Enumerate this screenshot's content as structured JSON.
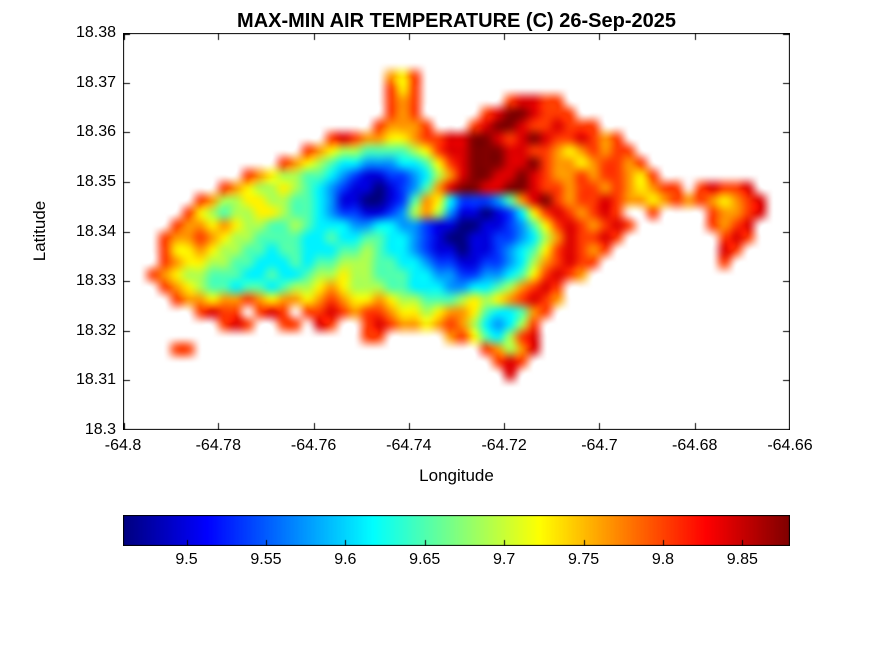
{
  "chart_data": {
    "type": "heatmap",
    "title": "MAX-MIN AIR TEMPERATURE (C) 26-Sep-2025",
    "xlabel": "Longitude",
    "ylabel": "Latitude",
    "xlim": [
      -64.8,
      -64.66
    ],
    "ylim": [
      18.3,
      18.38
    ],
    "grid_lines": false,
    "x_ticks": [
      {
        "label": "-64.8",
        "value": -64.8
      },
      {
        "label": "-64.78",
        "value": -64.78
      },
      {
        "label": "-64.76",
        "value": -64.76
      },
      {
        "label": "-64.74",
        "value": -64.74
      },
      {
        "label": "-64.72",
        "value": -64.72
      },
      {
        "label": "-64.7",
        "value": -64.7
      },
      {
        "label": "-64.68",
        "value": -64.68
      },
      {
        "label": "-64.66",
        "value": -64.66
      }
    ],
    "y_ticks": [
      {
        "label": "18.3",
        "value": 18.3
      },
      {
        "label": "18.31",
        "value": 18.31
      },
      {
        "label": "18.32",
        "value": 18.32
      },
      {
        "label": "18.33",
        "value": 18.33
      },
      {
        "label": "18.34",
        "value": 18.34
      },
      {
        "label": "18.35",
        "value": 18.35
      },
      {
        "label": "18.36",
        "value": 18.36
      },
      {
        "label": "18.37",
        "value": 18.37
      },
      {
        "label": "18.38",
        "value": 18.38
      }
    ],
    "colorbar": {
      "orientation": "horizontal",
      "colormap": "jet",
      "min": 9.46,
      "max": 9.88,
      "ticks": [
        {
          "label": "9.5",
          "value": 9.5
        },
        {
          "label": "9.55",
          "value": 9.55
        },
        {
          "label": "9.6",
          "value": 9.6
        },
        {
          "label": "9.65",
          "value": 9.65
        },
        {
          "label": "9.7",
          "value": 9.7
        },
        {
          "label": "9.75",
          "value": 9.75
        },
        {
          "label": "9.8",
          "value": 9.8
        },
        {
          "label": "9.85",
          "value": 9.85
        }
      ]
    },
    "grid": {
      "encoding": "Each row string is one latitude band (top row = lat 18.38). Each char is one cell of 0.0025 deg. '.' = no data (sea). Chars '0'-'9','A','B' map linearly from code_value_min ('0') to code_value_max ('B') in deg C.",
      "ncols": 56,
      "nrows": 32,
      "lon_start": -64.8,
      "lon_step": 0.0025,
      "lat_start": 18.38,
      "lat_step": -0.0025,
      "codes": "0123456789AB",
      "code_value_min": 9.46,
      "code_value_max": 9.88,
      "rows": [
        "........................................................",
        "........................................................",
        "........................................................",
        "......................879...............................",
        "......................979...............................",
        "......................989.......9AA99...................",
        "......................989.....9ABBA999..................",
        ".....................98889...9ABBA99A999................",
        ".................9A98877899AABBA9ABA99A989..............",
        "...............987665555679AABBBAA998789899.............",
        ".............987654433344579ABBBAAB988789989............",
        "..........987665543211223468ABBAABA9889899879...........",
        "........9876676543211012358ABBAABBA998998987899.9A99A...",
        "......9866776655431100125874222358AB9899A988789898789A..",
        ".....9765667765543221123686311012479A989A9..9....9889A..",
        "....988787665565444334433211001123579A989A9......989A...",
        "...9889876655554454455443210011223468A99A9........9A9...",
        "...9778766554554445565443211011234579A989.........A9....",
        "...9877665544454556665544322112234689A99..........9.....",
        "..9876655544544566766555443322334579A98.................",
        "...98765545545667876665544433445689A9...................",
        "....988788987887898778766555676789A98...................",
        "......9A99.9A9.99A989987767887544589....................",
        "........9A9..99.A9..9A9887898643469.....................",
        "....................99.....8975469A.....................",
        "....99........................9868A.....................",
        "...............................9A9......................",
        "................................A.......................",
        "........................................................",
        "........................................................",
        "........................................................",
        "........................................................"
      ]
    }
  }
}
